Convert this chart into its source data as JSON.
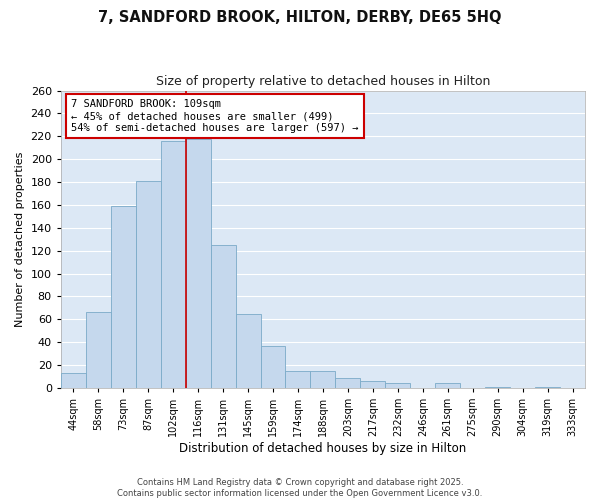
{
  "title": "7, SANDFORD BROOK, HILTON, DERBY, DE65 5HQ",
  "subtitle": "Size of property relative to detached houses in Hilton",
  "xlabel": "Distribution of detached houses by size in Hilton",
  "ylabel": "Number of detached properties",
  "bar_labels": [
    "44sqm",
    "58sqm",
    "73sqm",
    "87sqm",
    "102sqm",
    "116sqm",
    "131sqm",
    "145sqm",
    "159sqm",
    "174sqm",
    "188sqm",
    "203sqm",
    "217sqm",
    "232sqm",
    "246sqm",
    "261sqm",
    "275sqm",
    "290sqm",
    "304sqm",
    "319sqm",
    "333sqm"
  ],
  "bar_values": [
    13,
    66,
    159,
    181,
    216,
    218,
    125,
    65,
    37,
    15,
    15,
    9,
    6,
    4,
    0,
    4,
    0,
    1,
    0,
    1,
    0
  ],
  "bar_color": "#c5d8ed",
  "bar_edge_color": "#7aaac8",
  "vline_x": 4.5,
  "vline_color": "#cc0000",
  "annotation_text": "7 SANDFORD BROOK: 109sqm\n← 45% of detached houses are smaller (499)\n54% of semi-detached houses are larger (597) →",
  "annotation_box_color": "#ffffff",
  "annotation_box_edge": "#cc0000",
  "ylim": [
    0,
    260
  ],
  "yticks": [
    0,
    20,
    40,
    60,
    80,
    100,
    120,
    140,
    160,
    180,
    200,
    220,
    240,
    260
  ],
  "fig_bg": "#ffffff",
  "plot_bg": "#dce8f5",
  "grid_color": "#ffffff",
  "footer_line1": "Contains HM Land Registry data © Crown copyright and database right 2025.",
  "footer_line2": "Contains public sector information licensed under the Open Government Licence v3.0."
}
